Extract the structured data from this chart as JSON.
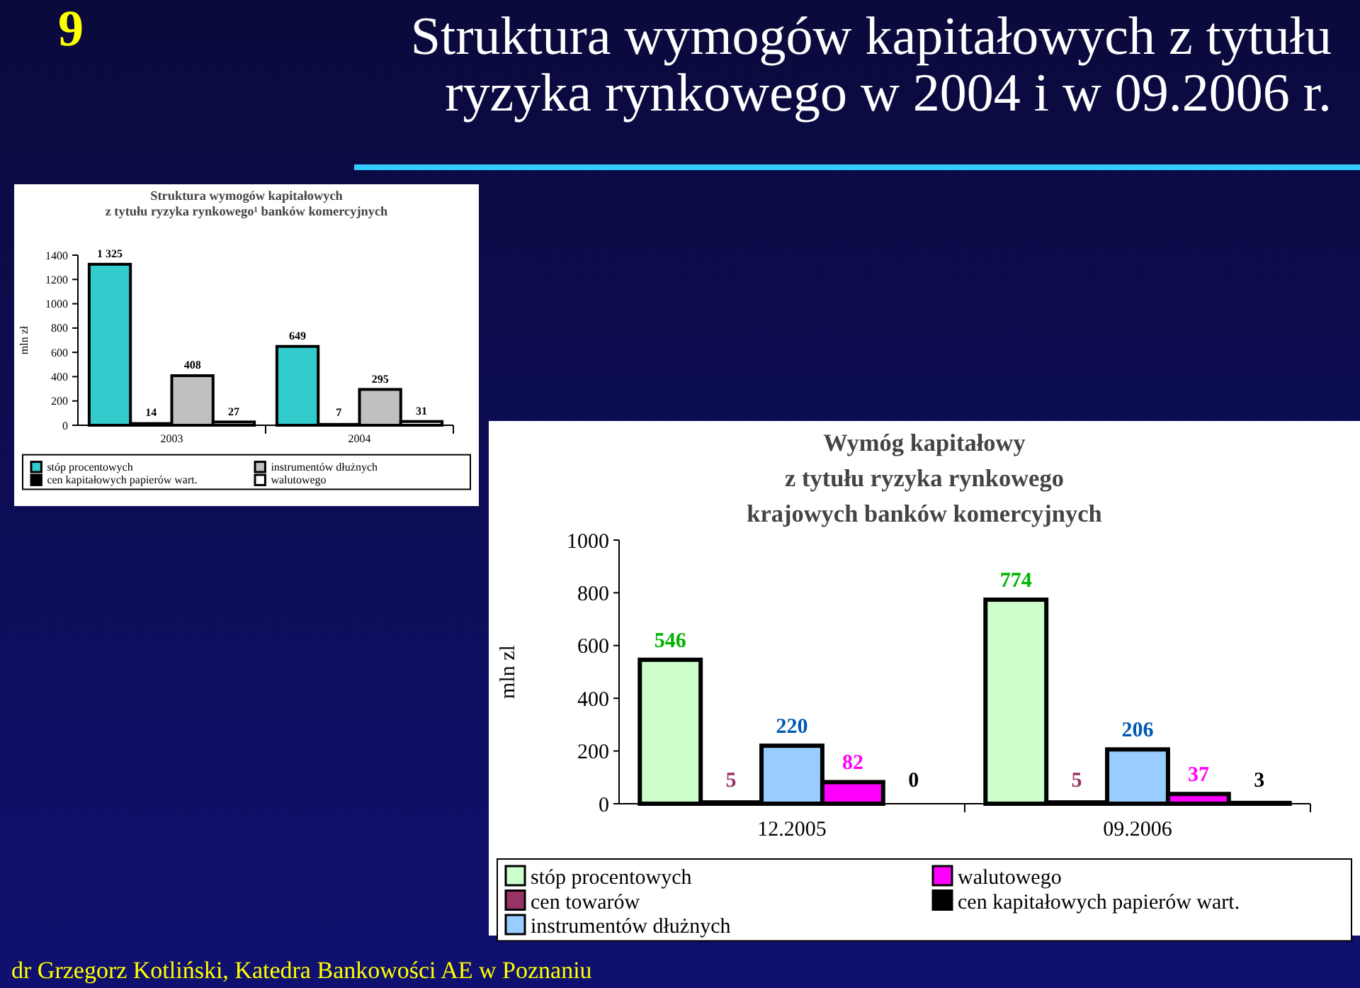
{
  "chart_data": [
    {
      "type": "bar",
      "title": "Struktura wymogów kapitałowych\nz tytułu ryzyka rynkowego¹ banków komercyjnych",
      "ylabel": "mln zł",
      "categories": [
        "2003",
        "2004"
      ],
      "series": [
        {
          "name": "stóp procentowych",
          "color": "#33cccc",
          "values": [
            1325,
            649
          ]
        },
        {
          "name": "cen kapitałowych papierów wart.",
          "color": "#000000",
          "values": [
            14,
            7
          ]
        },
        {
          "name": "instrumentów dłużnych",
          "color": "#c0c0c0",
          "values": [
            408,
            295
          ]
        },
        {
          "name": "walutowego",
          "color": "#ffffff",
          "values": [
            27,
            31
          ]
        }
      ],
      "value_labels": [
        [
          "1 325",
          "649"
        ],
        [
          "14",
          "7"
        ],
        [
          "408",
          "295"
        ],
        [
          "27",
          "31"
        ]
      ],
      "ylim": [
        0,
        1400
      ],
      "yticks": [
        0,
        200,
        400,
        600,
        800,
        1000,
        1200,
        1400
      ],
      "legend": "bottom",
      "grid": false,
      "annotations": [
        "9",
        "Struktura wymogów kapitałowych z tytułu\nryzyka rynkowego w 2004 i w 09.2006 r.",
        "dr Grzegorz Kotliński, Katedra Bankowości AE w Poznaniu"
      ]
    },
    {
      "type": "bar",
      "title": "Wymóg kapitałowy\nz tytułu ryzyka rynkowego\nkrajowych banków komercyjnych",
      "ylabel": "mln zl",
      "categories": [
        "12.2005",
        "09.2006"
      ],
      "series": [
        {
          "name": "stóp procentowych",
          "color": "#ccffcc",
          "values": [
            546,
            774
          ]
        },
        {
          "name": "cen towarów",
          "color": "#993366",
          "values": [
            5,
            5
          ]
        },
        {
          "name": "instrumentów dłużnych",
          "color": "#99ccff",
          "values": [
            220,
            206
          ]
        },
        {
          "name": "walutowego",
          "color": "#ff00ff",
          "values": [
            82,
            37
          ]
        },
        {
          "name": "cen kapitałowych papierów wart.",
          "color": "#000000",
          "values": [
            0,
            3
          ]
        }
      ],
      "value_labels": [
        [
          "546",
          "774"
        ],
        [
          "5",
          "5"
        ],
        [
          "220",
          "206"
        ],
        [
          "82",
          "37"
        ],
        [
          "0",
          "3"
        ]
      ],
      "ylim": [
        0,
        1000
      ],
      "yticks": [
        0,
        200,
        400,
        600,
        800,
        1000
      ],
      "legend": "bottom",
      "grid": false
    }
  ]
}
